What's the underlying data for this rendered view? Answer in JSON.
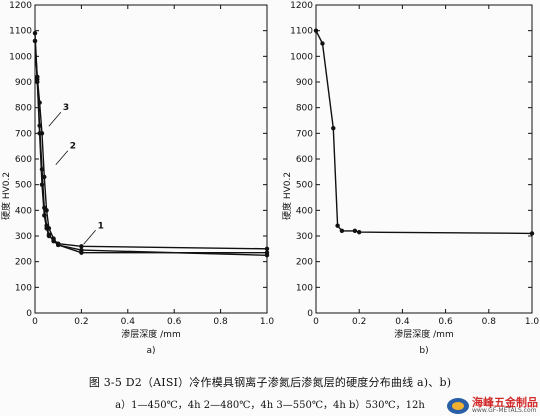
{
  "caption": {
    "title": "图 3-5   D2（AISI）冷作模具钢离子渗氮后渗氮层的硬度分布曲线 a)、b)",
    "subtitle": "a）1—450℃，4h   2—480℃，4h   3—550℃，4h   b）530℃，12h"
  },
  "watermark": {
    "name": "海峰五金制品",
    "url": "www.GF-METALS.com",
    "logo_icon": "gf-metals-logo"
  },
  "chart_data": [
    {
      "type": "line",
      "panel_label": "a)",
      "xlabel": "渗层深度 /mm",
      "ylabel": "硬度  HV0.2",
      "xlim": [
        0,
        1.0
      ],
      "ylim": [
        0,
        1200
      ],
      "xticks": [
        0,
        0.2,
        0.4,
        0.6,
        0.8,
        1.0
      ],
      "yticks": [
        0,
        100,
        200,
        300,
        400,
        500,
        600,
        700,
        800,
        900,
        1000,
        1100,
        1200
      ],
      "grid": false,
      "line_color": "#111111",
      "series": [
        {
          "name": "1",
          "x": [
            0,
            0.01,
            0.02,
            0.03,
            0.04,
            0.05,
            0.06,
            0.08,
            0.1,
            0.2,
            1.0
          ],
          "y": [
            1060,
            900,
            700,
            500,
            380,
            330,
            300,
            285,
            270,
            260,
            250
          ],
          "label_pos": [
            0.27,
            330
          ]
        },
        {
          "name": "2",
          "x": [
            0,
            0.01,
            0.02,
            0.03,
            0.04,
            0.05,
            0.06,
            0.08,
            0.1,
            0.2,
            1.0
          ],
          "y": [
            1090,
            910,
            730,
            560,
            410,
            340,
            305,
            280,
            265,
            245,
            225
          ],
          "label_pos": [
            0.15,
            640
          ]
        },
        {
          "name": "3",
          "x": [
            0,
            0.01,
            0.02,
            0.03,
            0.04,
            0.05,
            0.06,
            0.08,
            0.1,
            0.2,
            1.0
          ],
          "y": [
            1060,
            920,
            820,
            700,
            530,
            400,
            330,
            290,
            265,
            235,
            235
          ],
          "label_pos": [
            0.12,
            790
          ]
        }
      ]
    },
    {
      "type": "line",
      "panel_label": "b)",
      "xlabel": "渗层深度 /mm",
      "ylabel": "硬度  HV0.2",
      "xlim": [
        0,
        1.0
      ],
      "ylim": [
        0,
        1200
      ],
      "xticks": [
        0,
        0.2,
        0.4,
        0.6,
        0.8,
        1.0
      ],
      "yticks": [
        0,
        100,
        200,
        300,
        400,
        500,
        600,
        700,
        800,
        900,
        1000,
        1100,
        1200
      ],
      "grid": false,
      "line_color": "#111111",
      "series": [
        {
          "x": [
            0,
            0.03,
            0.08,
            0.1,
            0.12,
            0.18,
            0.2,
            1.0
          ],
          "y": [
            1100,
            1050,
            720,
            340,
            320,
            320,
            315,
            310
          ]
        }
      ]
    }
  ]
}
